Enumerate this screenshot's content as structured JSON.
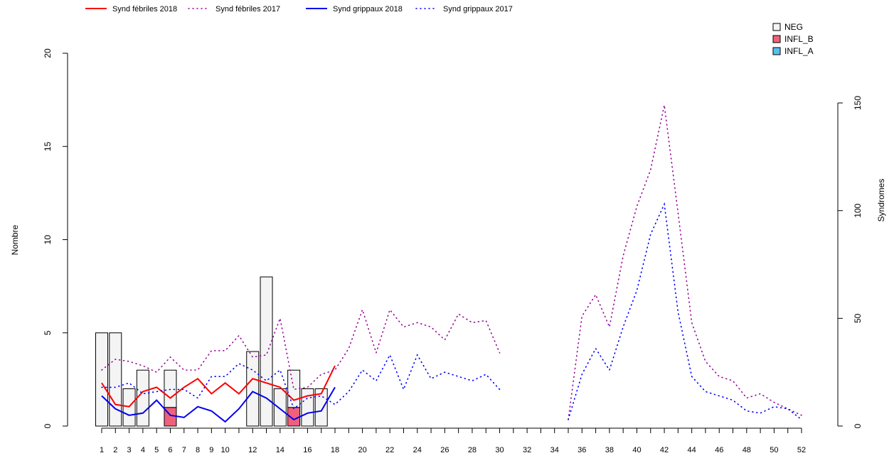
{
  "chart_data": {
    "type": "bar",
    "ylabel": "Nombre",
    "y2label": "Syndromes",
    "categories": [
      1,
      2,
      3,
      4,
      5,
      6,
      7,
      8,
      9,
      10,
      null,
      12,
      null,
      14,
      null,
      16,
      null,
      18,
      null,
      20,
      null,
      22,
      null,
      24,
      null,
      26,
      null,
      28,
      null,
      30,
      null,
      32,
      null,
      34,
      null,
      36,
      null,
      38,
      null,
      40,
      null,
      42,
      null,
      44,
      null,
      46,
      null,
      48,
      null,
      50,
      null,
      52
    ],
    "ylim": [
      0,
      20
    ],
    "yticks": [
      0,
      5,
      10,
      15,
      20
    ],
    "y2lim": [
      0,
      150
    ],
    "y2ticks": [
      0,
      50,
      100,
      150
    ],
    "series": [
      {
        "name": "NEG",
        "type": "bar",
        "color": "#f4f4f4",
        "values": [
          5,
          5,
          2,
          3,
          0,
          2,
          0,
          0,
          0,
          0,
          0,
          4,
          8,
          2,
          2,
          2,
          2,
          0,
          0,
          0,
          0,
          0,
          0,
          0,
          0,
          0,
          0,
          0,
          0,
          0,
          0,
          0,
          0,
          0,
          0,
          0,
          0,
          0,
          0,
          0,
          0,
          0,
          0,
          0,
          0,
          0,
          0,
          0,
          0,
          0,
          0,
          0
        ]
      },
      {
        "name": "INFL_B",
        "type": "bar",
        "color": "#f0607a",
        "values": [
          0,
          0,
          0,
          0,
          0,
          1,
          0,
          0,
          0,
          0,
          0,
          0,
          0,
          0,
          1,
          0,
          0,
          0,
          0,
          0,
          0,
          0,
          0,
          0,
          0,
          0,
          0,
          0,
          0,
          0,
          0,
          0,
          0,
          0,
          0,
          0,
          0,
          0,
          0,
          0,
          0,
          0,
          0,
          0,
          0,
          0,
          0,
          0,
          0,
          0,
          0,
          0
        ]
      },
      {
        "name": "INFL_A",
        "type": "bar",
        "color": "#5bbfee",
        "values": [
          0,
          0,
          0,
          0,
          0,
          0,
          0,
          0,
          0,
          0,
          0,
          0,
          0,
          0,
          0,
          0,
          0,
          0,
          0,
          0,
          0,
          0,
          0,
          0,
          0,
          0,
          0,
          0,
          0,
          0,
          0,
          0,
          0,
          0,
          0,
          0,
          0,
          0,
          0,
          0,
          0,
          0,
          0,
          0,
          0,
          0,
          0,
          0,
          0,
          0,
          0,
          0
        ]
      },
      {
        "name": "Synd fébriles 2018",
        "type": "line",
        "axis": "y2",
        "linestyle": "solid",
        "color": "#ff0000",
        "values": [
          20,
          10,
          9,
          16,
          18,
          13,
          18,
          22,
          15,
          20,
          15,
          22,
          20,
          18,
          12,
          14,
          15,
          28,
          null,
          null,
          null,
          null,
          null,
          null,
          null,
          null,
          null,
          null,
          null,
          null,
          null,
          null,
          null,
          null,
          null,
          null,
          null,
          null,
          null,
          null,
          null,
          null,
          null,
          null,
          null,
          null,
          null,
          null,
          null,
          null,
          null,
          null
        ]
      },
      {
        "name": "Synd fébriles 2017",
        "type": "line",
        "axis": "y2",
        "linestyle": "dotted",
        "color": "#9a0a9a",
        "values": [
          26,
          31,
          30,
          28,
          25,
          32,
          26,
          26,
          35,
          35,
          42,
          32,
          33,
          50,
          17,
          18,
          24,
          26,
          36,
          54,
          34,
          54,
          46,
          48,
          46,
          40,
          52,
          48,
          49,
          34,
          null,
          null,
          null,
          null,
          3,
          51,
          61,
          46,
          79,
          102,
          119,
          149,
          99,
          48,
          30,
          23,
          21,
          13,
          15,
          11,
          8,
          5
        ]
      },
      {
        "name": "Synd grippaux 2018",
        "type": "line",
        "axis": "y2",
        "linestyle": "solid",
        "color": "#0000ee",
        "values": [
          14,
          8,
          5,
          6,
          12,
          5,
          4,
          9,
          7,
          2,
          8,
          16,
          13,
          8,
          3,
          6,
          7,
          18,
          null,
          null,
          null,
          null,
          null,
          null,
          null,
          null,
          null,
          null,
          null,
          null,
          null,
          null,
          null,
          null,
          null,
          null,
          null,
          null,
          null,
          null,
          null,
          null,
          null,
          null,
          null,
          null,
          null,
          null,
          null,
          null,
          null,
          null
        ]
      },
      {
        "name": "Synd grippaux 2017",
        "type": "line",
        "axis": "y2",
        "linestyle": "dotted",
        "color": "#0000ff",
        "values": [
          18,
          18,
          20,
          15,
          16,
          17,
          17,
          13,
          23,
          23,
          29,
          26,
          21,
          26,
          8,
          13,
          14,
          10,
          16,
          26,
          21,
          33,
          17,
          33,
          22,
          25,
          23,
          21,
          24,
          17,
          null,
          null,
          null,
          null,
          3,
          24,
          36,
          26,
          46,
          63,
          89,
          103,
          53,
          23,
          16,
          14,
          12,
          7,
          6,
          9,
          8,
          3
        ]
      }
    ]
  }
}
